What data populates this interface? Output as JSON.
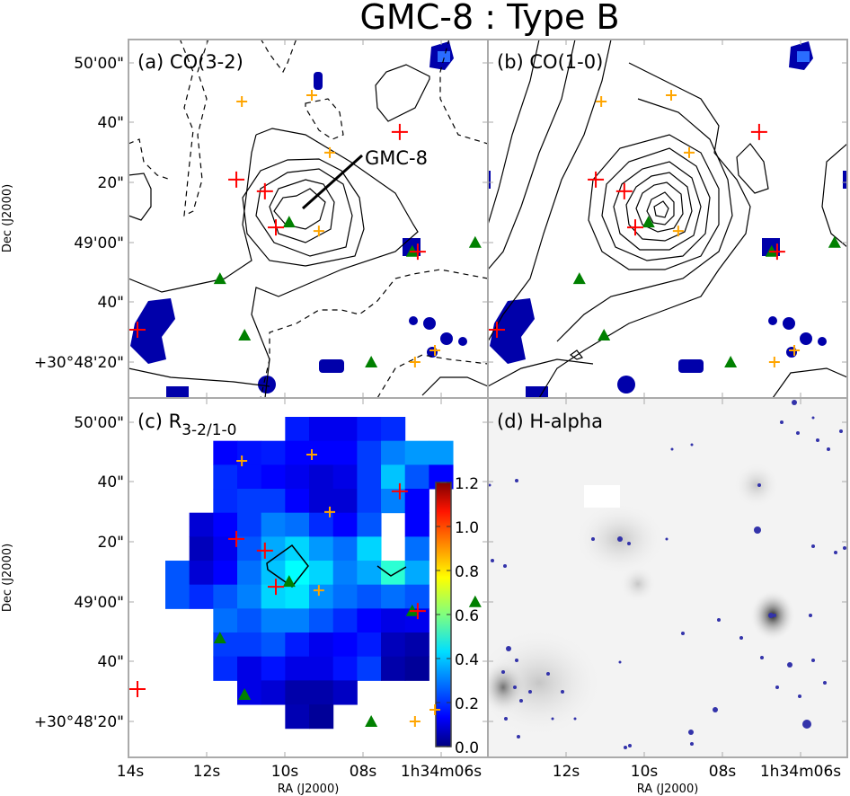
{
  "title": "GMC-8 : Type B",
  "chart_data": [
    {
      "type": "contour",
      "panel_label": "(a) CO(3-2)",
      "annotation": "GMC-8",
      "ylabel": "Dec (J2000)",
      "yticks": [
        "50'00\"",
        "40\"",
        "20\"",
        "49'00\"",
        "40\"",
        "+30°48'20\""
      ]
    },
    {
      "type": "contour",
      "panel_label": "(b) CO(1-0)"
    },
    {
      "type": "heatmap",
      "panel_label_main": "(c) R",
      "panel_label_sub": "3-2/1-0",
      "xlabel": "RA (J2000)",
      "ylabel": "Dec (J2000)",
      "xticks": [
        "14s",
        "12s",
        "10s",
        "08s",
        "1h34m06s"
      ],
      "yticks": [
        "50'00\"",
        "40\"",
        "20\"",
        "49'00\"",
        "40\"",
        "+30°48'20\""
      ],
      "colorbar": {
        "colormap": "jet",
        "range": [
          0.0,
          1.2
        ],
        "ticks": [
          "1.2",
          "1.0",
          "0.8",
          "0.6",
          "0.4",
          "0.2",
          "0.0"
        ]
      },
      "grid_values": [
        [
          null,
          null,
          null,
          null,
          null,
          0.18,
          0.13,
          0.13,
          0.18,
          0.2,
          null,
          null
        ],
        [
          null,
          null,
          0.15,
          0.17,
          0.18,
          0.15,
          0.15,
          0.15,
          0.22,
          0.3,
          0.33,
          0.33
        ],
        [
          null,
          null,
          0.2,
          0.17,
          0.15,
          0.13,
          0.1,
          0.12,
          0.22,
          0.38,
          0.25,
          0.15
        ],
        [
          null,
          null,
          0.2,
          0.22,
          0.22,
          0.15,
          0.1,
          0.1,
          0.22,
          0.3,
          0.15,
          null
        ],
        [
          null,
          0.1,
          0.15,
          0.22,
          0.3,
          0.28,
          0.2,
          0.15,
          0.25,
          null,
          0.15,
          null
        ],
        [
          null,
          0.07,
          0.13,
          0.25,
          0.35,
          0.4,
          0.33,
          0.28,
          0.4,
          null,
          0.28,
          null
        ],
        [
          0.25,
          0.1,
          0.15,
          0.28,
          0.38,
          0.45,
          0.4,
          0.3,
          0.35,
          0.5,
          0.35,
          null
        ],
        [
          0.25,
          0.2,
          0.25,
          0.3,
          0.4,
          0.42,
          0.32,
          0.28,
          0.25,
          0.28,
          0.25,
          null
        ],
        [
          null,
          null,
          0.28,
          0.25,
          0.3,
          0.3,
          0.25,
          0.2,
          0.15,
          0.12,
          0.13,
          null
        ],
        [
          null,
          null,
          0.22,
          0.22,
          0.25,
          0.18,
          0.13,
          0.15,
          0.18,
          0.07,
          0.05,
          null
        ],
        [
          null,
          null,
          0.2,
          0.12,
          0.17,
          0.12,
          0.12,
          0.17,
          0.22,
          0.05,
          0.03,
          null
        ],
        [
          null,
          null,
          null,
          0.12,
          0.1,
          0.05,
          0.05,
          0.08,
          null,
          null,
          null,
          null
        ],
        [
          null,
          null,
          null,
          null,
          null,
          0.06,
          0.03,
          null,
          null,
          null,
          null,
          null
        ]
      ]
    },
    {
      "type": "image",
      "panel_label": "(d) H-alpha",
      "xlabel": "RA (J2000)",
      "xticks": [
        "12s",
        "10s",
        "08s",
        "1h34m06s"
      ]
    }
  ],
  "markers": {
    "coords_units": "RA seconds (1h34m), Dec arcsec offset from +30°48'00\"",
    "red_cross": {
      "color": "#ff0000",
      "points": [
        [
          11.24,
          81.0
        ],
        [
          10.51,
          77.1
        ],
        [
          10.23,
          65.0
        ],
        [
          7.06,
          96.9
        ],
        [
          13.77,
          30.8
        ],
        [
          6.6,
          56.9
        ]
      ]
    },
    "orange_cross": {
      "color": "#ffa500",
      "points": [
        [
          11.1,
          107.1
        ],
        [
          9.31,
          109.2
        ],
        [
          8.85,
          90.0
        ],
        [
          9.13,
          63.8
        ],
        [
          6.16,
          23.9
        ],
        [
          6.67,
          20.0
        ]
      ]
    },
    "green_triangle": {
      "color": "#008000",
      "points": [
        [
          9.89,
          66.8
        ],
        [
          11.66,
          47.9
        ],
        [
          11.03,
          29.0
        ],
        [
          7.79,
          20.0
        ],
        [
          6.74,
          57.0
        ],
        [
          5.13,
          60.0
        ]
      ]
    }
  }
}
